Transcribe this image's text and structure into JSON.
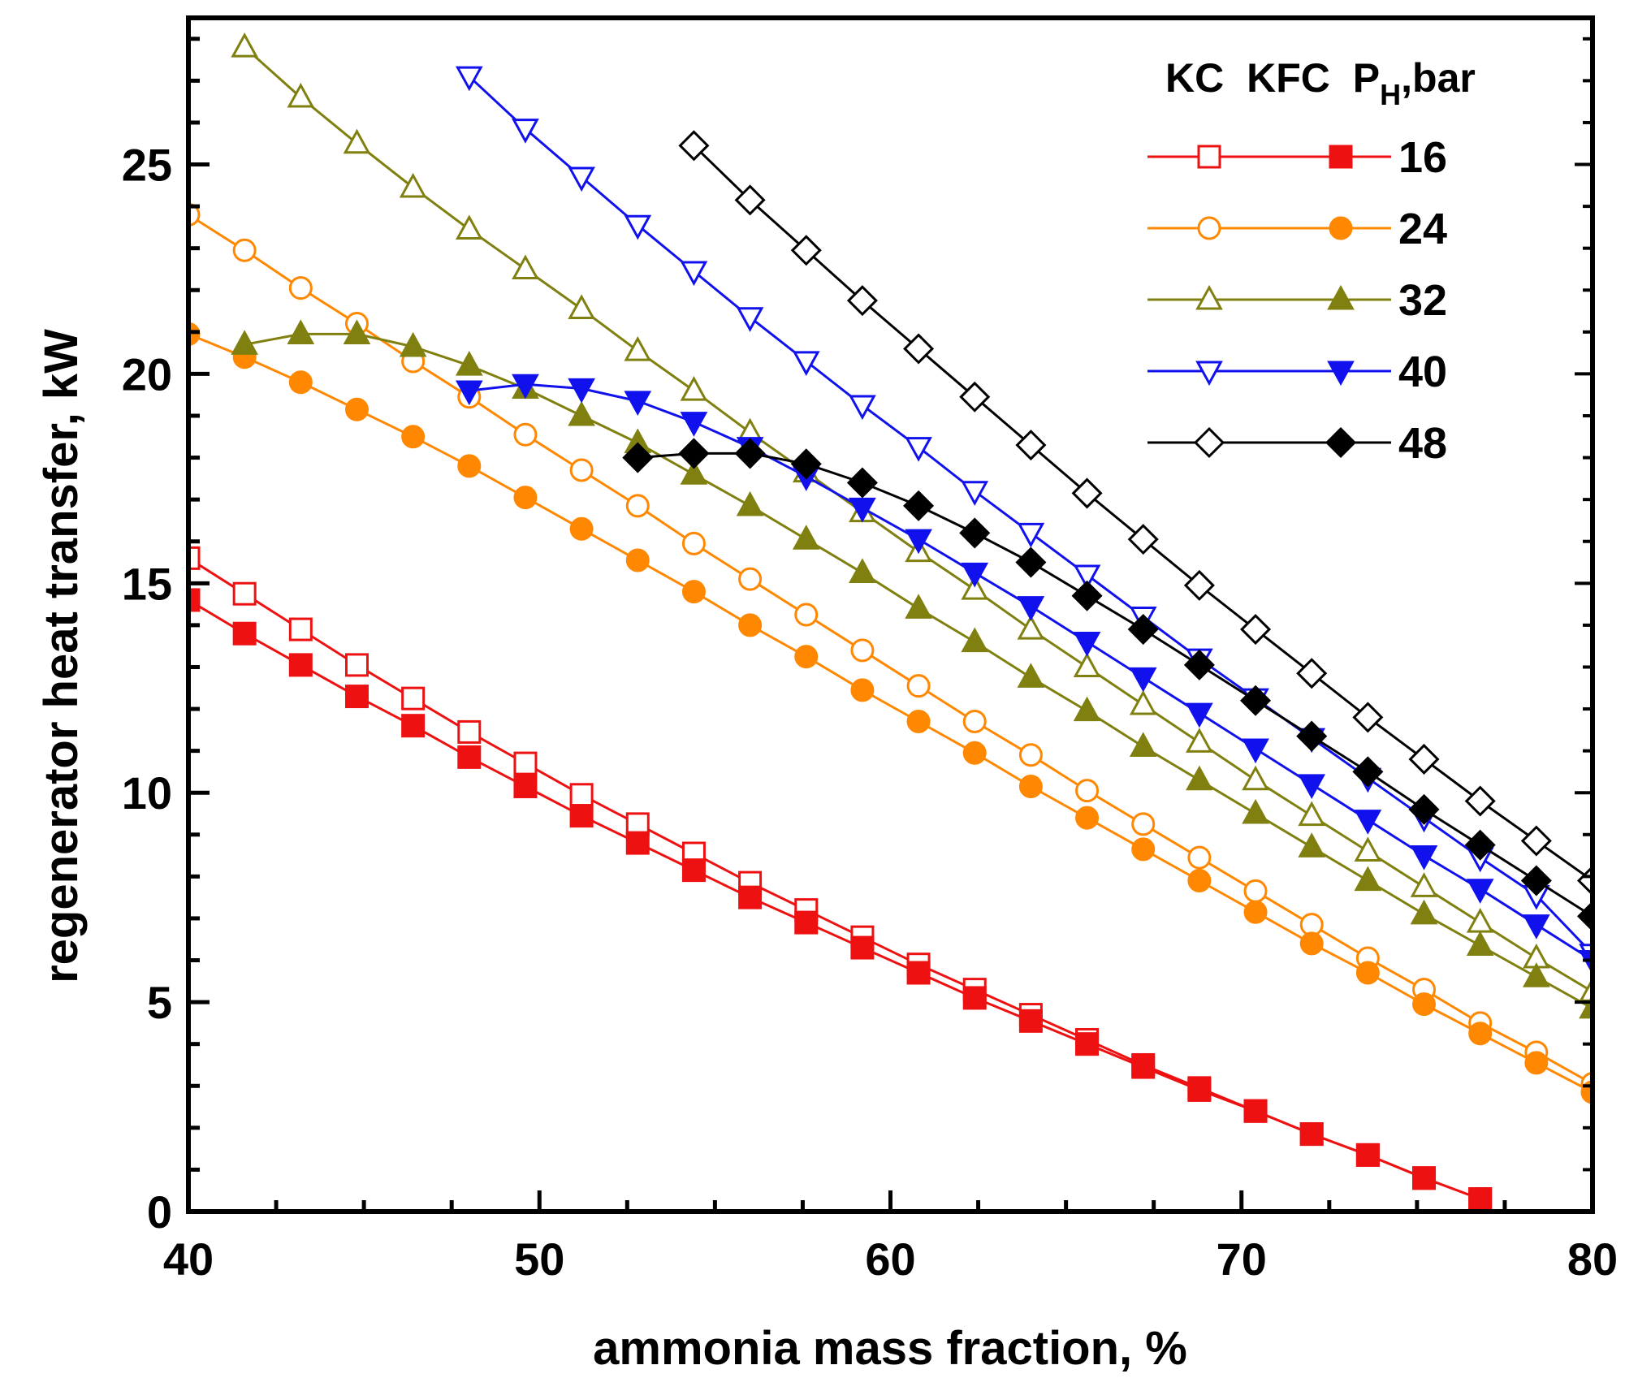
{
  "chart_data": {
    "type": "line",
    "title": "",
    "xlabel": "ammonia mass fraction, %",
    "ylabel": "regenerator heat transfer, kW",
    "xlim": [
      40,
      80
    ],
    "ylim": [
      0,
      28.5
    ],
    "x_ticks": [
      40,
      50,
      60,
      70,
      80
    ],
    "y_ticks": [
      0,
      5,
      10,
      15,
      20,
      25
    ],
    "legend": {
      "placement": "top-right",
      "header": {
        "kc": "KC",
        "kfc": "KFC",
        "p": "P",
        "sub": "H",
        "unit": ",bar"
      },
      "entries": [
        "16",
        "24",
        "32",
        "40",
        "48"
      ]
    },
    "series": [
      {
        "name": "KC 16 bar",
        "pressure": "16",
        "cycle": "KC",
        "color": "#ee1111",
        "marker": "square",
        "filled": false,
        "x": [
          40,
          41.6,
          43.2,
          44.8,
          46.4,
          48,
          49.6,
          51.2,
          52.8,
          54.4,
          56,
          57.6,
          59.2,
          60.8,
          62.4,
          64,
          65.6,
          67.2,
          68.8,
          70.4,
          72,
          73.6,
          75.2,
          76.8
        ],
        "y": [
          15.6,
          14.75,
          13.9,
          13.05,
          12.25,
          11.45,
          10.7,
          9.95,
          9.25,
          8.55,
          7.85,
          7.2,
          6.55,
          5.9,
          5.3,
          4.7,
          4.1,
          3.5,
          2.95,
          2.4,
          1.85,
          1.35,
          0.8,
          0.3
        ]
      },
      {
        "name": "KFC 16 bar",
        "pressure": "16",
        "cycle": "KFC",
        "color": "#ee1111",
        "marker": "square",
        "filled": true,
        "x": [
          40,
          41.6,
          43.2,
          44.8,
          46.4,
          48,
          49.6,
          51.2,
          52.8,
          54.4,
          56,
          57.6,
          59.2,
          60.8,
          62.4,
          64,
          65.6,
          67.2,
          68.8,
          70.4,
          72,
          73.6,
          75.2,
          76.8
        ],
        "y": [
          14.6,
          13.8,
          13.05,
          12.3,
          11.6,
          10.85,
          10.15,
          9.45,
          8.8,
          8.15,
          7.5,
          6.9,
          6.3,
          5.7,
          5.1,
          4.55,
          4.0,
          3.45,
          2.9,
          2.4,
          1.85,
          1.35,
          0.8,
          0.3
        ]
      },
      {
        "name": "KC 24 bar",
        "pressure": "24",
        "cycle": "KC",
        "color": "#ff8800",
        "marker": "circle",
        "filled": false,
        "x": [
          40,
          41.6,
          43.2,
          44.8,
          46.4,
          48,
          49.6,
          51.2,
          52.8,
          54.4,
          56,
          57.6,
          59.2,
          60.8,
          62.4,
          64,
          65.6,
          67.2,
          68.8,
          70.4,
          72,
          73.6,
          75.2,
          76.8,
          78.4,
          80
        ],
        "y": [
          23.8,
          22.95,
          22.05,
          21.2,
          20.3,
          19.45,
          18.55,
          17.7,
          16.85,
          15.95,
          15.1,
          14.25,
          13.4,
          12.55,
          11.7,
          10.9,
          10.05,
          9.25,
          8.45,
          7.65,
          6.85,
          6.05,
          5.3,
          4.5,
          3.8,
          3.05
        ]
      },
      {
        "name": "KFC 24 bar",
        "pressure": "24",
        "cycle": "KFC",
        "color": "#ff8800",
        "marker": "circle",
        "filled": true,
        "x": [
          40,
          41.6,
          43.2,
          44.8,
          46.4,
          48,
          49.6,
          51.2,
          52.8,
          54.4,
          56,
          57.6,
          59.2,
          60.8,
          62.4,
          64,
          65.6,
          67.2,
          68.8,
          70.4,
          72,
          73.6,
          75.2,
          76.8,
          78.4,
          80
        ],
        "y": [
          20.95,
          20.4,
          19.8,
          19.15,
          18.5,
          17.8,
          17.05,
          16.3,
          15.55,
          14.8,
          14.0,
          13.25,
          12.45,
          11.7,
          10.95,
          10.15,
          9.4,
          8.65,
          7.9,
          7.15,
          6.4,
          5.7,
          4.95,
          4.25,
          3.55,
          2.85
        ]
      },
      {
        "name": "KC 32 bar",
        "pressure": "32",
        "cycle": "KC",
        "color": "#808010",
        "marker": "triangle-up",
        "filled": false,
        "x": [
          41.6,
          43.2,
          44.8,
          46.4,
          48,
          49.6,
          51.2,
          52.8,
          54.4,
          56,
          57.6,
          59.2,
          60.8,
          62.4,
          64,
          65.6,
          67.2,
          68.8,
          70.4,
          72,
          73.6,
          75.2,
          76.8,
          78.4,
          80
        ],
        "y": [
          27.8,
          26.6,
          25.5,
          24.45,
          23.45,
          22.5,
          21.55,
          20.55,
          19.6,
          18.6,
          17.65,
          16.7,
          15.75,
          14.85,
          13.9,
          13.0,
          12.1,
          11.2,
          10.3,
          9.45,
          8.6,
          7.75,
          6.9,
          6.05,
          5.25
        ]
      },
      {
        "name": "KFC 32 bar",
        "pressure": "32",
        "cycle": "KFC",
        "color": "#808010",
        "marker": "triangle-up",
        "filled": true,
        "x": [
          41.6,
          43.2,
          44.8,
          46.4,
          48,
          49.6,
          51.2,
          52.8,
          54.4,
          56,
          57.6,
          59.2,
          60.8,
          62.4,
          64,
          65.6,
          67.2,
          68.8,
          70.4,
          72,
          73.6,
          75.2,
          76.8,
          78.4,
          80
        ],
        "y": [
          20.7,
          20.95,
          20.95,
          20.65,
          20.2,
          19.65,
          19.0,
          18.35,
          17.6,
          16.85,
          16.05,
          15.25,
          14.4,
          13.6,
          12.75,
          11.95,
          11.1,
          10.3,
          9.5,
          8.7,
          7.9,
          7.1,
          6.35,
          5.6,
          4.85
        ]
      },
      {
        "name": "KC 40 bar",
        "pressure": "40",
        "cycle": "KC",
        "color": "#1111ee",
        "marker": "triangle-down",
        "filled": false,
        "x": [
          48,
          49.6,
          51.2,
          52.8,
          54.4,
          56,
          57.6,
          59.2,
          60.8,
          62.4,
          64,
          65.6,
          67.2,
          68.8,
          70.4,
          72,
          73.6,
          75.2,
          76.8,
          78.4,
          80
        ],
        "y": [
          27.1,
          25.85,
          24.7,
          23.55,
          22.45,
          21.35,
          20.3,
          19.25,
          18.25,
          17.2,
          16.2,
          15.2,
          14.2,
          13.2,
          12.25,
          11.3,
          10.35,
          9.4,
          8.45,
          7.55,
          6.15
        ]
      },
      {
        "name": "KFC 40 bar",
        "pressure": "40",
        "cycle": "KFC",
        "color": "#1111ee",
        "marker": "triangle-down",
        "filled": true,
        "x": [
          48,
          49.6,
          51.2,
          52.8,
          54.4,
          56,
          57.6,
          59.2,
          60.8,
          62.4,
          64,
          65.6,
          67.2,
          68.8,
          70.4,
          72,
          73.6,
          75.2,
          76.8,
          78.4,
          80
        ],
        "y": [
          19.6,
          19.75,
          19.65,
          19.35,
          18.85,
          18.25,
          17.55,
          16.8,
          16.05,
          15.25,
          14.45,
          13.6,
          12.75,
          11.9,
          11.05,
          10.2,
          9.35,
          8.5,
          7.7,
          6.85,
          6.0
        ]
      },
      {
        "name": "KC 48 bar",
        "pressure": "48",
        "cycle": "KC",
        "color": "#000000",
        "marker": "diamond",
        "filled": false,
        "x": [
          54.4,
          56,
          57.6,
          59.2,
          60.8,
          62.4,
          64,
          65.6,
          67.2,
          68.8,
          70.4,
          72,
          73.6,
          75.2,
          76.8,
          78.4,
          80
        ],
        "y": [
          25.45,
          24.15,
          22.95,
          21.75,
          20.6,
          19.45,
          18.3,
          17.15,
          16.05,
          14.95,
          13.9,
          12.85,
          11.8,
          10.8,
          9.8,
          8.85,
          7.9
        ]
      },
      {
        "name": "KFC 48 bar",
        "pressure": "48",
        "cycle": "KFC",
        "color": "#000000",
        "marker": "diamond",
        "filled": true,
        "x": [
          52.8,
          54.4,
          56,
          57.6,
          59.2,
          60.8,
          62.4,
          64,
          65.6,
          67.2,
          68.8,
          70.4,
          72,
          73.6,
          75.2,
          76.8,
          78.4,
          80
        ],
        "y": [
          18.0,
          18.1,
          18.1,
          17.85,
          17.4,
          16.85,
          16.2,
          15.5,
          14.7,
          13.9,
          13.05,
          12.2,
          11.35,
          10.5,
          9.6,
          8.75,
          7.9,
          7.05
        ]
      }
    ]
  }
}
